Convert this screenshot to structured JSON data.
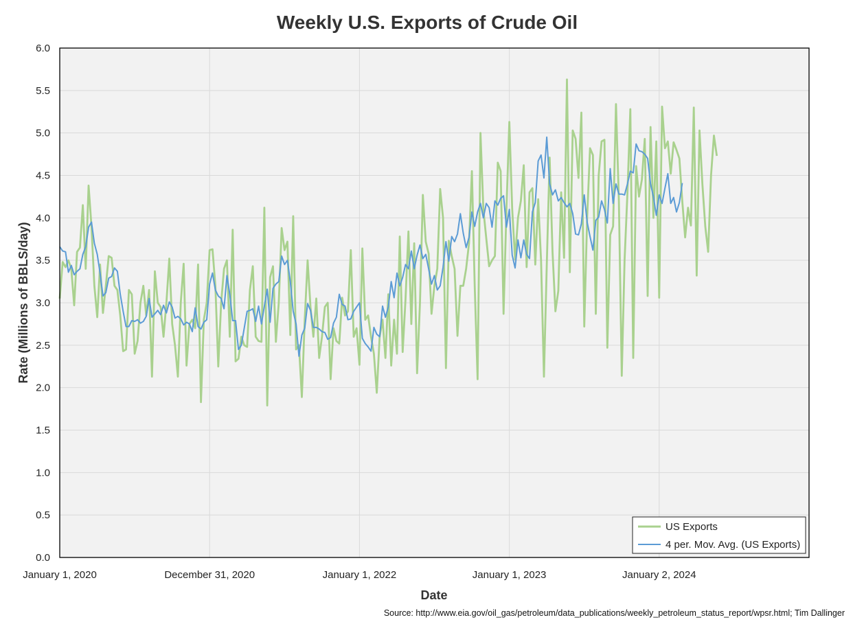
{
  "chart_data": {
    "type": "line",
    "title": "Weekly U.S. Exports of Crude Oil",
    "xlabel": "Date",
    "ylabel": "Rate (Millions of BBLS/day)",
    "source": "Source: http://www.eia.gov/oil_gas/petroleum/data_publications/weekly_petroleum_status_report/wpsr.html; Tim Dallinger",
    "ylim": [
      0,
      6
    ],
    "yticks": [
      "0.0",
      "0.5",
      "1.0",
      "1.5",
      "2.0",
      "2.5",
      "3.0",
      "3.5",
      "4.0",
      "4.5",
      "5.0",
      "5.5",
      "6.0"
    ],
    "xlim_weeks": [
      0,
      260
    ],
    "xticks": [
      {
        "week": 0,
        "label": "January 1, 2020"
      },
      {
        "week": 52,
        "label": "December 31, 2020"
      },
      {
        "week": 104,
        "label": "January 1, 2022"
      },
      {
        "week": 156,
        "label": "January 1, 2023"
      },
      {
        "week": 208,
        "label": "January 2, 2024"
      }
    ],
    "grid": true,
    "legend_position": "bottom-right",
    "colors": {
      "plot_bg": "#f2f2f2",
      "grid": "#d9d9d9",
      "exports": "#a9d18e",
      "moving_avg": "#5b9bd5"
    },
    "series": [
      {
        "name": "US Exports",
        "values": [
          3.05,
          3.48,
          3.42,
          3.5,
          3.4,
          2.97,
          3.6,
          3.65,
          4.15,
          3.4,
          4.38,
          3.9,
          3.2,
          2.83,
          3.45,
          2.88,
          3.2,
          3.55,
          3.53,
          3.2,
          3.15,
          2.85,
          2.43,
          2.45,
          3.15,
          3.1,
          2.4,
          2.55,
          3.0,
          3.2,
          2.85,
          3.15,
          2.13,
          3.37,
          3.0,
          2.95,
          2.6,
          3.0,
          3.52,
          2.75,
          2.5,
          2.13,
          3.0,
          3.46,
          2.26,
          2.75,
          2.8,
          2.7,
          3.45,
          1.83,
          2.8,
          3.0,
          3.62,
          3.63,
          3.2,
          2.25,
          3.0,
          3.4,
          3.5,
          2.6,
          3.86,
          2.31,
          2.34,
          2.6,
          2.5,
          2.48,
          3.15,
          3.43,
          2.6,
          2.55,
          2.54,
          4.12,
          1.79,
          3.3,
          3.43,
          2.54,
          3.0,
          3.88,
          3.62,
          3.72,
          2.62,
          4.02,
          2.45,
          2.5,
          1.89,
          2.8,
          3.5,
          2.95,
          2.6,
          3.05,
          2.35,
          2.6,
          2.95,
          3.0,
          2.1,
          2.7,
          2.55,
          2.52,
          3.06,
          2.85,
          2.9,
          3.62,
          2.6,
          2.7,
          2.27,
          3.64,
          2.8,
          2.85,
          2.6,
          2.4,
          1.94,
          2.6,
          2.8,
          2.35,
          3.1,
          2.26,
          2.8,
          2.4,
          3.78,
          2.42,
          3.05,
          3.84,
          2.75,
          3.7,
          2.17,
          3.0,
          4.27,
          3.72,
          3.58,
          2.87,
          3.2,
          3.4,
          4.34,
          4.0,
          2.23,
          3.73,
          3.55,
          3.4,
          2.61,
          3.2,
          3.2,
          3.4,
          3.7,
          4.55,
          3.2,
          2.1,
          5.0,
          4.1,
          3.76,
          3.43,
          3.5,
          3.55,
          4.65,
          4.55,
          2.87,
          4.1,
          5.13,
          4.1,
          3.51,
          4.0,
          4.2,
          4.62,
          3.42,
          4.3,
          4.35,
          3.45,
          4.22,
          3.5,
          2.13,
          3.44,
          4.71,
          3.6,
          2.9,
          3.14,
          4.3,
          3.53,
          5.63,
          3.36,
          5.03,
          4.93,
          4.47,
          5.24,
          2.72,
          4.0,
          4.82,
          4.74,
          2.87,
          4.5,
          4.9,
          4.92,
          2.47,
          3.8,
          3.9,
          5.34,
          4.2,
          2.14,
          3.5,
          4.3,
          5.28,
          2.35,
          4.61,
          4.25,
          4.45,
          4.93,
          3.08,
          5.07,
          4.0,
          4.9,
          3.06,
          5.31,
          4.82,
          4.9,
          4.52,
          4.89,
          4.8,
          4.7,
          4.2,
          3.77,
          4.12,
          3.91,
          5.3,
          3.32,
          5.03,
          4.4,
          3.9,
          3.6,
          4.5,
          4.97,
          4.73
        ]
      },
      {
        "name": "4 per. Mov. Avg. (US Exports)",
        "values": [
          3.66,
          3.61,
          3.6,
          3.36,
          3.44,
          3.33,
          3.37,
          3.4,
          3.57,
          3.66,
          3.89,
          3.95,
          3.7,
          3.57,
          3.35,
          3.08,
          3.12,
          3.29,
          3.31,
          3.41,
          3.37,
          3.1,
          2.9,
          2.72,
          2.72,
          2.79,
          2.78,
          2.8,
          2.76,
          2.78,
          2.84,
          3.05,
          2.83,
          2.87,
          2.91,
          2.86,
          2.97,
          2.88,
          3.01,
          2.95,
          2.82,
          2.84,
          2.81,
          2.74,
          2.77,
          2.75,
          2.66,
          2.94,
          2.72,
          2.69,
          2.77,
          2.8,
          3.22,
          3.35,
          3.15,
          3.08,
          3.05,
          2.93,
          3.32,
          3.1,
          2.79,
          2.79,
          2.45,
          2.5,
          2.7,
          2.9,
          2.91,
          2.93,
          2.78,
          2.96,
          2.75,
          2.96,
          3.16,
          2.77,
          3.17,
          3.22,
          3.25,
          3.55,
          3.45,
          3.5,
          3.25,
          2.9,
          2.75,
          2.37,
          2.62,
          2.7,
          2.99,
          2.91,
          2.71,
          2.71,
          2.69,
          2.66,
          2.65,
          2.57,
          2.59,
          2.76,
          2.83,
          3.1,
          2.98,
          2.96,
          2.8,
          2.81,
          2.9,
          2.95,
          3.0,
          2.58,
          2.52,
          2.48,
          2.43,
          2.71,
          2.63,
          2.6,
          2.96,
          2.83,
          2.95,
          3.25,
          3.06,
          3.35,
          3.2,
          3.3,
          3.45,
          3.4,
          3.61,
          3.4,
          3.56,
          3.68,
          3.52,
          3.57,
          3.4,
          3.22,
          3.32,
          3.15,
          3.2,
          3.42,
          3.72,
          3.49,
          3.78,
          3.72,
          3.81,
          4.05,
          3.82,
          3.65,
          3.77,
          4.07,
          3.9,
          4.07,
          4.17,
          4.0,
          4.17,
          4.12,
          3.89,
          4.2,
          4.15,
          4.23,
          4.26,
          3.89,
          4.1,
          3.56,
          3.41,
          3.74,
          3.53,
          3.74,
          3.57,
          3.52,
          4.07,
          4.18,
          4.67,
          4.74,
          4.47,
          4.95,
          4.4,
          4.27,
          4.33,
          4.2,
          4.24,
          4.18,
          4.13,
          4.17,
          4.05,
          3.81,
          3.8,
          3.93,
          4.27,
          3.95,
          3.78,
          3.62,
          3.97,
          4.01,
          4.2,
          4.1,
          3.94,
          4.58,
          4.17,
          4.4,
          4.28,
          4.28,
          4.27,
          4.4,
          4.55,
          4.53,
          4.87,
          4.79,
          4.78,
          4.75,
          4.7,
          4.4,
          4.25,
          4.03,
          4.27,
          4.17,
          4.35,
          4.52,
          4.17,
          4.24,
          4.07,
          4.18,
          4.41
        ]
      }
    ]
  }
}
